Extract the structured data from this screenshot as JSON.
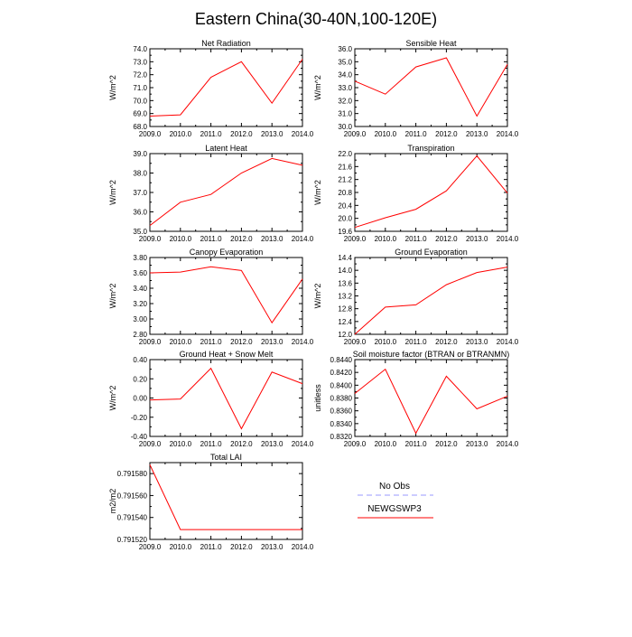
{
  "title": "Eastern China(30-40N,100-120E)",
  "colors": {
    "series_line": "#ff0000",
    "obs_line": "#9999ff",
    "axis": "#000000"
  },
  "legend": {
    "entries": [
      {
        "label": "No Obs",
        "style": "dashed",
        "color": "#9999ff"
      },
      {
        "label": "NEWGSWP3",
        "style": "solid",
        "color": "#ff0000"
      }
    ]
  },
  "chart_data": [
    {
      "type": "line",
      "title": "Net Radiation",
      "ylabel": "W/m^2",
      "x": [
        2009,
        2010,
        2011,
        2012,
        2013,
        2014
      ],
      "xticks": [
        "2009.0",
        "2010.0",
        "2011.0",
        "2012.0",
        "2013.0",
        "2014.0"
      ],
      "xlim": [
        2009,
        2014
      ],
      "ylim": [
        68.0,
        74.0
      ],
      "yticks": [
        "68.0",
        "69.0",
        "70.0",
        "71.0",
        "72.0",
        "73.0",
        "74.0"
      ],
      "series": [
        {
          "name": "NEWGSWP3",
          "values": [
            68.8,
            68.9,
            71.8,
            73.0,
            69.8,
            73.2
          ]
        }
      ]
    },
    {
      "type": "line",
      "title": "Sensible Heat",
      "ylabel": "W/m^2",
      "x": [
        2009,
        2010,
        2011,
        2012,
        2013,
        2014
      ],
      "xticks": [
        "2009.0",
        "2010.0",
        "2011.0",
        "2012.0",
        "2013.0",
        "2014.0"
      ],
      "xlim": [
        2009,
        2014
      ],
      "ylim": [
        30.0,
        36.0
      ],
      "yticks": [
        "30.0",
        "31.0",
        "32.0",
        "33.0",
        "34.0",
        "35.0",
        "36.0"
      ],
      "series": [
        {
          "name": "NEWGSWP3",
          "values": [
            33.5,
            32.5,
            34.6,
            35.3,
            30.8,
            34.8
          ]
        }
      ]
    },
    {
      "type": "line",
      "title": "Latent Heat",
      "ylabel": "W/m^2",
      "x": [
        2009,
        2010,
        2011,
        2012,
        2013,
        2014
      ],
      "xticks": [
        "2009.0",
        "2010.0",
        "2011.0",
        "2012.0",
        "2013.0",
        "2014.0"
      ],
      "xlim": [
        2009,
        2014
      ],
      "ylim": [
        35.0,
        39.0
      ],
      "yticks": [
        "35.0",
        "36.0",
        "37.0",
        "38.0",
        "39.0"
      ],
      "series": [
        {
          "name": "NEWGSWP3",
          "values": [
            35.3,
            36.5,
            36.9,
            38.0,
            38.75,
            38.4
          ]
        }
      ]
    },
    {
      "type": "line",
      "title": "Transpiration",
      "ylabel": "W/m^2",
      "x": [
        2009,
        2010,
        2011,
        2012,
        2013,
        2014
      ],
      "xticks": [
        "2009.0",
        "2010.0",
        "2011.0",
        "2012.0",
        "2013.0",
        "2014.0"
      ],
      "xlim": [
        2009,
        2014
      ],
      "ylim": [
        19.6,
        22.0
      ],
      "yticks": [
        "19.6",
        "20.0",
        "20.4",
        "20.8",
        "21.2",
        "21.6",
        "22.0"
      ],
      "series": [
        {
          "name": "NEWGSWP3",
          "values": [
            19.72,
            20.02,
            20.28,
            20.85,
            21.93,
            20.78
          ]
        }
      ]
    },
    {
      "type": "line",
      "title": "Canopy Evaporation",
      "ylabel": "W/m^2",
      "x": [
        2009,
        2010,
        2011,
        2012,
        2013,
        2014
      ],
      "xticks": [
        "2009.0",
        "2010.0",
        "2011.0",
        "2012.0",
        "2013.0",
        "2014.0"
      ],
      "xlim": [
        2009,
        2014
      ],
      "ylim": [
        2.8,
        3.8
      ],
      "yticks": [
        "2.80",
        "3.00",
        "3.20",
        "3.40",
        "3.60",
        "3.80"
      ],
      "series": [
        {
          "name": "NEWGSWP3",
          "values": [
            3.6,
            3.61,
            3.68,
            3.63,
            2.95,
            3.52
          ]
        }
      ]
    },
    {
      "type": "line",
      "title": "Ground Evaporation",
      "ylabel": "W/m^2",
      "x": [
        2009,
        2010,
        2011,
        2012,
        2013,
        2014
      ],
      "xticks": [
        "2009.0",
        "2010.0",
        "2011.0",
        "2012.0",
        "2013.0",
        "2014.0"
      ],
      "xlim": [
        2009,
        2014
      ],
      "ylim": [
        12.0,
        14.4
      ],
      "yticks": [
        "12.0",
        "12.4",
        "12.8",
        "13.2",
        "13.6",
        "14.0",
        "14.4"
      ],
      "series": [
        {
          "name": "NEWGSWP3",
          "values": [
            12.0,
            12.85,
            12.92,
            13.55,
            13.93,
            14.1
          ]
        }
      ]
    },
    {
      "type": "line",
      "title": "Ground Heat + Snow Melt",
      "ylabel": "W/m^2",
      "x": [
        2009,
        2010,
        2011,
        2012,
        2013,
        2014
      ],
      "xticks": [
        "2009.0",
        "2010.0",
        "2011.0",
        "2012.0",
        "2013.0",
        "2014.0"
      ],
      "xlim": [
        2009,
        2014
      ],
      "ylim": [
        -0.4,
        0.4
      ],
      "yticks": [
        "-0.40",
        "-0.20",
        "0.00",
        "0.20",
        "0.40"
      ],
      "series": [
        {
          "name": "NEWGSWP3",
          "values": [
            -0.02,
            -0.01,
            0.31,
            -0.32,
            0.27,
            0.15
          ]
        }
      ]
    },
    {
      "type": "line",
      "title": "Soil moisture factor (BTRAN or BTRANMN)",
      "ylabel": "unitless",
      "x": [
        2009,
        2010,
        2011,
        2012,
        2013,
        2014
      ],
      "xticks": [
        "2009.0",
        "2010.0",
        "2011.0",
        "2012.0",
        "2013.0",
        "2014.0"
      ],
      "xlim": [
        2009,
        2014
      ],
      "ylim": [
        0.832,
        0.844
      ],
      "yticks": [
        "0.8320",
        "0.8340",
        "0.8360",
        "0.8380",
        "0.8400",
        "0.8420",
        "0.8440"
      ],
      "series": [
        {
          "name": "NEWGSWP3",
          "values": [
            0.8387,
            0.8425,
            0.8325,
            0.8414,
            0.8363,
            0.8383
          ]
        }
      ]
    },
    {
      "type": "line",
      "title": "Total LAI",
      "ylabel": "m2/m2",
      "x": [
        2009,
        2010,
        2011,
        2012,
        2013,
        2014
      ],
      "xticks": [
        "2009.0",
        "2010.0",
        "2011.0",
        "2012.0",
        "2013.0",
        "2014.0"
      ],
      "xlim": [
        2009,
        2014
      ],
      "ylim": [
        0.79152,
        0.79159
      ],
      "yticks": [
        "0.791520",
        "0.791540",
        "0.791560",
        "0.791580"
      ],
      "ytick_values": [
        0.79152,
        0.79154,
        0.79156,
        0.79158
      ],
      "series": [
        {
          "name": "NEWGSWP3",
          "values": [
            0.791588,
            0.791529,
            0.791529,
            0.791529,
            0.791529,
            0.791529
          ]
        }
      ]
    }
  ]
}
